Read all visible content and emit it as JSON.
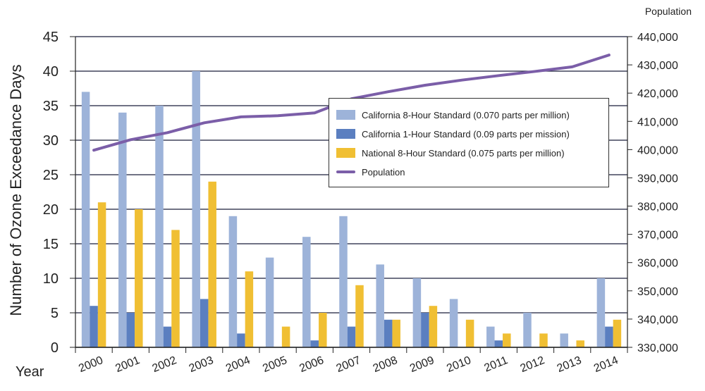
{
  "chart_data": {
    "type": "bar",
    "categories": [
      "2000",
      "2001",
      "2002",
      "2003",
      "2004",
      "2005",
      "2006",
      "2007",
      "2008",
      "2009",
      "2010",
      "2011",
      "2012",
      "2013",
      "2014"
    ],
    "series": [
      {
        "name": "California 8-Hour Standard (0.070 parts per million)",
        "values": [
          37,
          34,
          35,
          40,
          19,
          13,
          16,
          19,
          12,
          10,
          7,
          3,
          5,
          2,
          10
        ],
        "color": "#9db3d9"
      },
      {
        "name": "California 1-Hour Standard (0.09 parts per mission)",
        "values": [
          6,
          5,
          3,
          7,
          2,
          0,
          1,
          3,
          4,
          5,
          0,
          1,
          0,
          0,
          3
        ],
        "color": "#5b7fc0"
      },
      {
        "name": "National 8-Hour Standard (0.075 parts per million)",
        "values": [
          21,
          20,
          17,
          24,
          11,
          3,
          5,
          9,
          4,
          6,
          4,
          2,
          2,
          1,
          4
        ],
        "color": "#f0bf33"
      }
    ],
    "line_series": {
      "name": "Population",
      "values": [
        399800,
        403500,
        406000,
        409500,
        411600,
        412000,
        413000,
        418000,
        420500,
        422800,
        424600,
        426200,
        427700,
        429300,
        433500
      ],
      "color": "#7b5ea8",
      "axis": "right"
    },
    "xlabel": "Year",
    "ylabel": "Number of Ozone Exceedance Days",
    "y2label": "Population",
    "ylim": [
      0,
      45
    ],
    "y2lim": [
      330000,
      440000
    ],
    "yticks": [
      "0",
      "5",
      "10",
      "15",
      "20",
      "25",
      "30",
      "35",
      "40",
      "45"
    ],
    "y2ticks": [
      "330,000",
      "340,000",
      "350,000",
      "360,000",
      "370,000",
      "380,000",
      "390,000",
      "400,000",
      "410,000",
      "420,000",
      "430,000",
      "440,000"
    ],
    "grid": true,
    "legend_position": "center-right"
  }
}
